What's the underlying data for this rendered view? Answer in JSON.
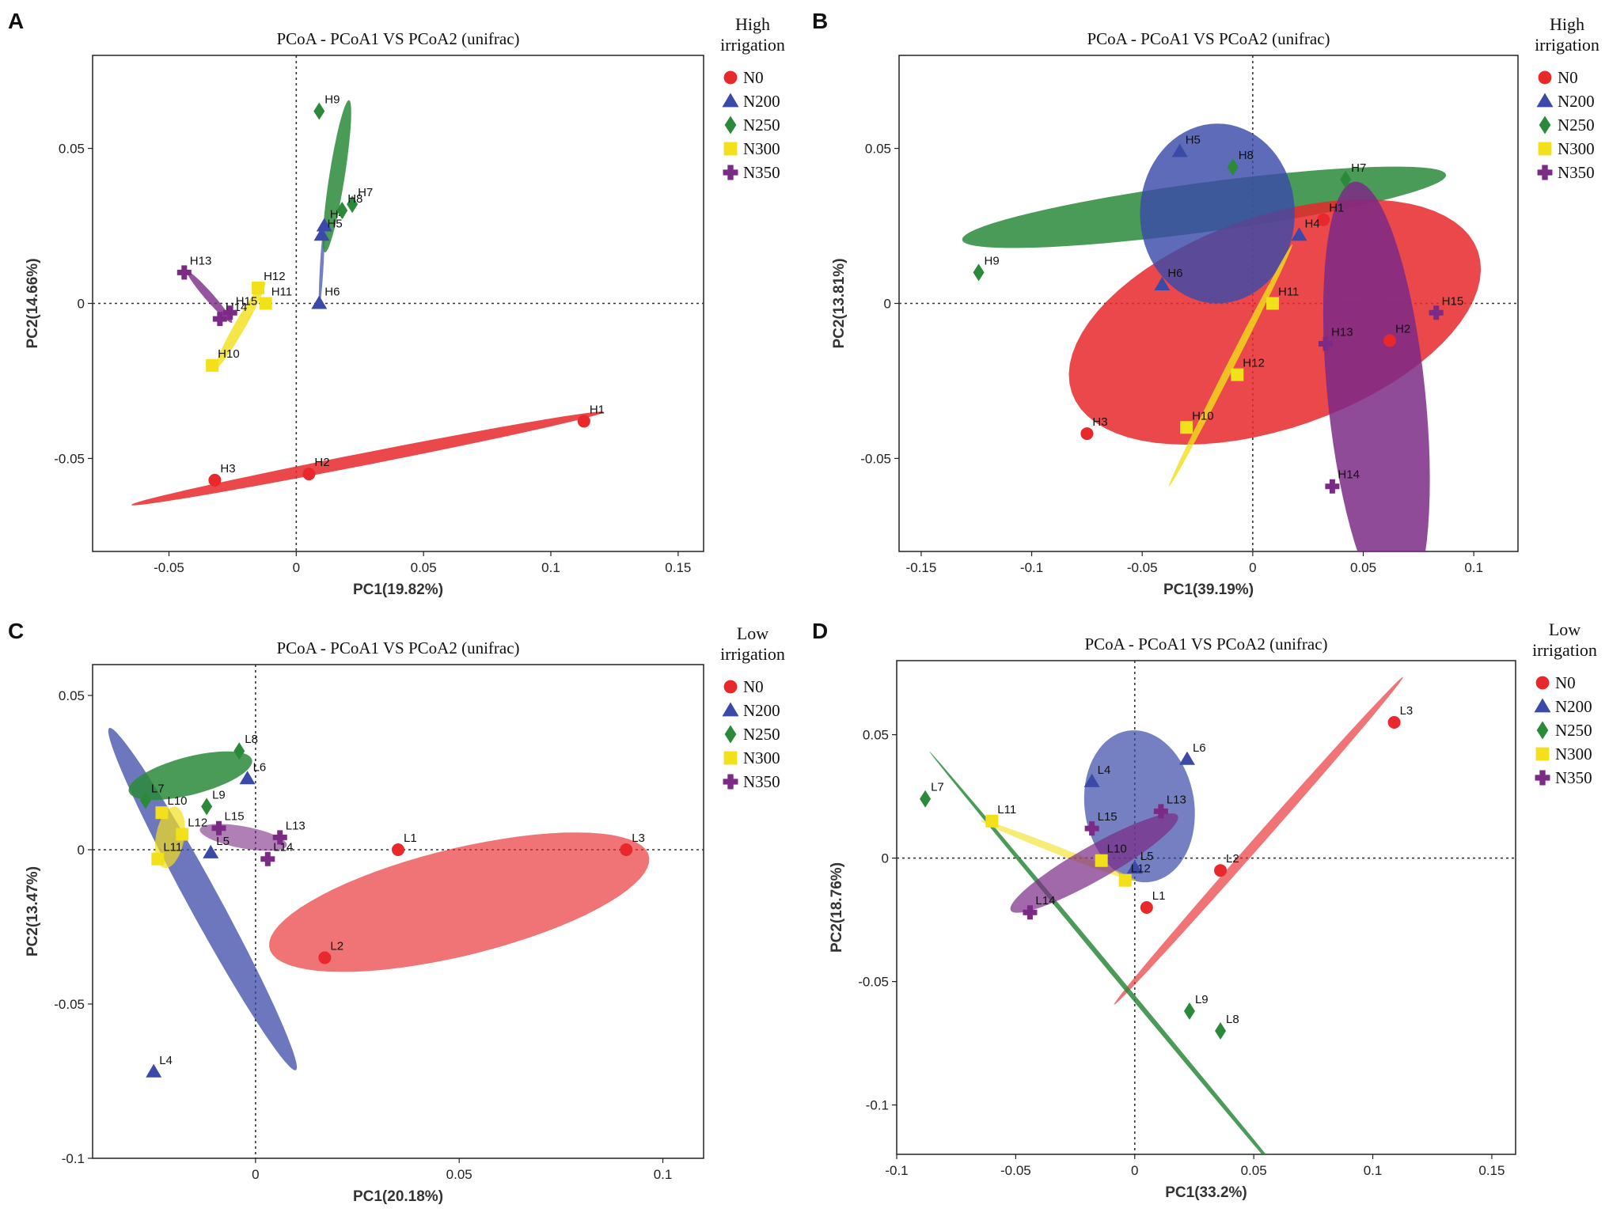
{
  "colors": {
    "N0": "#e8282b",
    "N200": "#3b4aa8",
    "N250": "#2a8a3a",
    "N300": "#f2e01a",
    "N350": "#7b2a86"
  },
  "legend_entries": [
    {
      "key": "N0",
      "label": "N0",
      "marker": "circle"
    },
    {
      "key": "N200",
      "label": "N200",
      "marker": "triangle"
    },
    {
      "key": "N250",
      "label": "N250",
      "marker": "diamond"
    },
    {
      "key": "N300",
      "label": "N300",
      "marker": "square"
    },
    {
      "key": "N350",
      "label": "N350",
      "marker": "cross"
    }
  ],
  "chart_data": [
    {
      "panel": "A",
      "type": "scatter",
      "title": "PCoA - PCoA1 VS PCoA2 (unifrac)",
      "xlabel": "PC1(19.82%)",
      "ylabel": "PC2(14.66%)",
      "xlim": [
        -0.08,
        0.16
      ],
      "ylim": [
        -0.08,
        0.08
      ],
      "xticks": [
        -0.05,
        0,
        0.05,
        0.1,
        0.15
      ],
      "xtick_labels": [
        "-0.05",
        "0",
        "0.05",
        "0.1",
        "0.15"
      ],
      "yticks": [
        -0.05,
        0,
        0.05
      ],
      "ytick_labels": [
        "-0.05",
        "0",
        "0.05"
      ],
      "legend_title": [
        "High",
        "irrigation"
      ],
      "points": [
        {
          "label": "H1",
          "group": "N0",
          "x": 0.113,
          "y": -0.038
        },
        {
          "label": "H2",
          "group": "N0",
          "x": 0.005,
          "y": -0.055
        },
        {
          "label": "H3",
          "group": "N0",
          "x": -0.032,
          "y": -0.057
        },
        {
          "label": "H4",
          "group": "N200",
          "x": 0.011,
          "y": 0.025
        },
        {
          "label": "H5",
          "group": "N200",
          "x": 0.01,
          "y": 0.022
        },
        {
          "label": "H6",
          "group": "N200",
          "x": 0.009,
          "y": 0.0
        },
        {
          "label": "H7",
          "group": "N250",
          "x": 0.022,
          "y": 0.032
        },
        {
          "label": "H8",
          "group": "N250",
          "x": 0.018,
          "y": 0.03
        },
        {
          "label": "H9",
          "group": "N250",
          "x": 0.009,
          "y": 0.062
        },
        {
          "label": "H10",
          "group": "N300",
          "x": -0.033,
          "y": -0.02
        },
        {
          "label": "H11",
          "group": "N300",
          "x": -0.012,
          "y": 0.0
        },
        {
          "label": "H12",
          "group": "N300",
          "x": -0.015,
          "y": 0.005
        },
        {
          "label": "H13",
          "group": "N350",
          "x": -0.044,
          "y": 0.01
        },
        {
          "label": "H14",
          "group": "N350",
          "x": -0.03,
          "y": -0.005
        },
        {
          "label": "H15",
          "group": "N350",
          "x": -0.026,
          "y": -0.003
        }
      ],
      "ellipses": [
        {
          "group": "N0",
          "cx": 0.028,
          "cy": -0.05,
          "rx": 0.094,
          "ry": 0.002,
          "angle": 0.16,
          "opacity": 0.85
        },
        {
          "group": "N200",
          "cx": 0.01,
          "cy": 0.012,
          "rx": 0.013,
          "ry": 0.0007,
          "angle": 1.5,
          "opacity": 0.7
        },
        {
          "group": "N250",
          "cx": 0.016,
          "cy": 0.041,
          "rx": 0.025,
          "ry": 0.003,
          "angle": 1.38,
          "opacity": 0.85
        },
        {
          "group": "N300",
          "cx": -0.022,
          "cy": -0.007,
          "rx": 0.017,
          "ry": 0.002,
          "angle": 0.96,
          "opacity": 0.8
        },
        {
          "group": "N350",
          "cx": -0.034,
          "cy": 0.002,
          "rx": 0.012,
          "ry": 0.0015,
          "angle": -0.75,
          "opacity": 0.8
        }
      ]
    },
    {
      "panel": "B",
      "type": "scatter",
      "title": "PCoA - PCoA1 VS PCoA2 (unifrac)",
      "xlabel": "PC1(39.19%)",
      "ylabel": "PC2(13.81%)",
      "xlim": [
        -0.16,
        0.12
      ],
      "ylim": [
        -0.08,
        0.08
      ],
      "xticks": [
        -0.15,
        -0.1,
        -0.05,
        0,
        0.05,
        0.1
      ],
      "xtick_labels": [
        "-0.15",
        "-0.1",
        "-0.05",
        "0",
        "0.05",
        "0.1"
      ],
      "yticks": [
        -0.05,
        0,
        0.05
      ],
      "ytick_labels": [
        "-0.05",
        "0",
        "0.05"
      ],
      "legend_title": [
        "High",
        "irrigation"
      ],
      "points": [
        {
          "label": "H1",
          "group": "N0",
          "x": 0.032,
          "y": 0.027
        },
        {
          "label": "H2",
          "group": "N0",
          "x": 0.062,
          "y": -0.012
        },
        {
          "label": "H3",
          "group": "N0",
          "x": -0.075,
          "y": -0.042
        },
        {
          "label": "H4",
          "group": "N200",
          "x": 0.021,
          "y": 0.022
        },
        {
          "label": "H5",
          "group": "N200",
          "x": -0.033,
          "y": 0.049
        },
        {
          "label": "H6",
          "group": "N200",
          "x": -0.041,
          "y": 0.006
        },
        {
          "label": "H7",
          "group": "N250",
          "x": 0.042,
          "y": 0.04
        },
        {
          "label": "H8",
          "group": "N250",
          "x": -0.009,
          "y": 0.044
        },
        {
          "label": "H9",
          "group": "N250",
          "x": -0.124,
          "y": 0.01
        },
        {
          "label": "H10",
          "group": "N300",
          "x": -0.03,
          "y": -0.04
        },
        {
          "label": "H11",
          "group": "N300",
          "x": 0.009,
          "y": 0.0
        },
        {
          "label": "H12",
          "group": "N300",
          "x": -0.007,
          "y": -0.023
        },
        {
          "label": "H13",
          "group": "N350",
          "x": 0.033,
          "y": -0.013
        },
        {
          "label": "H14",
          "group": "N350",
          "x": 0.036,
          "y": -0.059
        },
        {
          "label": "H15",
          "group": "N350",
          "x": 0.083,
          "y": -0.003
        }
      ],
      "ellipses": [
        {
          "group": "N250",
          "cx": -0.022,
          "cy": 0.031,
          "rx": 0.11,
          "ry": 0.008,
          "angle": 0.095,
          "opacity": 0.85
        },
        {
          "group": "N0",
          "cx": 0.01,
          "cy": -0.006,
          "rx": 0.095,
          "ry": 0.035,
          "angle": 0.21,
          "opacity": 0.85
        },
        {
          "group": "N200",
          "cx": -0.016,
          "cy": 0.029,
          "rx": 0.035,
          "ry": 0.029,
          "angle": 0,
          "opacity": 0.82
        },
        {
          "group": "N350",
          "cx": 0.056,
          "cy": -0.03,
          "rx": 0.07,
          "ry": 0.022,
          "angle": 1.72,
          "opacity": 0.85
        },
        {
          "group": "N300",
          "cx": -0.01,
          "cy": -0.02,
          "rx": 0.048,
          "ry": 0.0015,
          "angle": 0.95,
          "opacity": 0.8
        }
      ]
    },
    {
      "panel": "C",
      "type": "scatter",
      "title": "PCoA - PCoA1 VS PCoA2 (unifrac)",
      "xlabel": "PC1(20.18%)",
      "ylabel": "PC2(13.47%)",
      "xlim": [
        -0.04,
        0.11
      ],
      "ylim": [
        -0.1,
        0.06
      ],
      "xticks": [
        0,
        0.05,
        0.1
      ],
      "xtick_labels": [
        "0",
        "0.05",
        "0.1"
      ],
      "yticks": [
        -0.1,
        -0.05,
        0,
        0.05
      ],
      "ytick_labels": [
        "-0.1",
        "-0.05",
        "0",
        "0.05"
      ],
      "legend_title": [
        "Low",
        "irrigation"
      ],
      "points": [
        {
          "label": "L1",
          "group": "N0",
          "x": 0.035,
          "y": 0.0
        },
        {
          "label": "L2",
          "group": "N0",
          "x": 0.017,
          "y": -0.035
        },
        {
          "label": "L3",
          "group": "N0",
          "x": 0.091,
          "y": 0.0
        },
        {
          "label": "L4",
          "group": "N200",
          "x": -0.025,
          "y": -0.072
        },
        {
          "label": "L5",
          "group": "N200",
          "x": -0.011,
          "y": -0.001
        },
        {
          "label": "L6",
          "group": "N200",
          "x": -0.002,
          "y": 0.023
        },
        {
          "label": "L7",
          "group": "N250",
          "x": -0.027,
          "y": 0.016
        },
        {
          "label": "L8",
          "group": "N250",
          "x": -0.004,
          "y": 0.032
        },
        {
          "label": "L9",
          "group": "N250",
          "x": -0.012,
          "y": 0.014
        },
        {
          "label": "L10",
          "group": "N300",
          "x": -0.023,
          "y": 0.012
        },
        {
          "label": "L11",
          "group": "N300",
          "x": -0.024,
          "y": -0.003
        },
        {
          "label": "L12",
          "group": "N300",
          "x": -0.018,
          "y": 0.005
        },
        {
          "label": "L13",
          "group": "N350",
          "x": 0.006,
          "y": 0.004
        },
        {
          "label": "L14",
          "group": "N350",
          "x": 0.003,
          "y": -0.003
        },
        {
          "label": "L15",
          "group": "N350",
          "x": -0.009,
          "y": 0.007
        }
      ],
      "ellipses": [
        {
          "group": "N0",
          "cx": 0.05,
          "cy": -0.017,
          "rx": 0.049,
          "ry": 0.017,
          "angle": 0.33,
          "opacity": 0.65
        },
        {
          "group": "N200",
          "cx": -0.013,
          "cy": -0.016,
          "rx": 0.06,
          "ry": 0.004,
          "angle": -1.18,
          "opacity": 0.75
        },
        {
          "group": "N250",
          "cx": -0.016,
          "cy": 0.024,
          "rx": 0.016,
          "ry": 0.006,
          "angle": 0.35,
          "opacity": 0.85
        },
        {
          "group": "N300",
          "cx": -0.021,
          "cy": 0.004,
          "rx": 0.01,
          "ry": 0.0035,
          "angle": 1.45,
          "opacity": 0.7
        },
        {
          "group": "N350",
          "cx": -0.003,
          "cy": 0.004,
          "rx": 0.011,
          "ry": 0.0035,
          "angle": -0.25,
          "opacity": 0.6
        }
      ]
    },
    {
      "panel": "D",
      "type": "scatter",
      "title": "PCoA - PCoA1 VS PCoA2 (unifrac)",
      "xlabel": "PC1(33.2%)",
      "ylabel": "PC2(18.76%)",
      "xlim": [
        -0.1,
        0.16
      ],
      "ylim": [
        -0.12,
        0.08
      ],
      "xticks": [
        -0.1,
        -0.05,
        0,
        0.05,
        0.1,
        0.15
      ],
      "xtick_labels": [
        "-0.1",
        "-0.05",
        "0",
        "0.05",
        "0.1",
        "0.15"
      ],
      "yticks": [
        -0.1,
        -0.05,
        0,
        0.05
      ],
      "ytick_labels": [
        "-0.1",
        "-0.05",
        "0",
        "0.05"
      ],
      "legend_title": [
        "Low",
        "irrigation"
      ],
      "points": [
        {
          "label": "L1",
          "group": "N0",
          "x": 0.005,
          "y": -0.02
        },
        {
          "label": "L2",
          "group": "N0",
          "x": 0.036,
          "y": -0.005
        },
        {
          "label": "L3",
          "group": "N0",
          "x": 0.109,
          "y": 0.055
        },
        {
          "label": "L4",
          "group": "N200",
          "x": -0.018,
          "y": 0.031
        },
        {
          "label": "L5",
          "group": "N200",
          "x": 0.0,
          "y": -0.004
        },
        {
          "label": "L6",
          "group": "N200",
          "x": 0.022,
          "y": 0.04
        },
        {
          "label": "L7",
          "group": "N250",
          "x": -0.088,
          "y": 0.024
        },
        {
          "label": "L8",
          "group": "N250",
          "x": 0.036,
          "y": -0.07
        },
        {
          "label": "L9",
          "group": "N250",
          "x": 0.023,
          "y": -0.062
        },
        {
          "label": "L10",
          "group": "N300",
          "x": -0.014,
          "y": -0.001
        },
        {
          "label": "L11",
          "group": "N300",
          "x": -0.06,
          "y": 0.015
        },
        {
          "label": "L12",
          "group": "N300",
          "x": -0.004,
          "y": -0.009
        },
        {
          "label": "L13",
          "group": "N350",
          "x": 0.011,
          "y": 0.019
        },
        {
          "label": "L14",
          "group": "N350",
          "x": -0.044,
          "y": -0.022
        },
        {
          "label": "L15",
          "group": "N350",
          "x": -0.018,
          "y": 0.012
        }
      ],
      "ellipses": [
        {
          "group": "N200",
          "cx": 0.002,
          "cy": 0.021,
          "rx": 0.023,
          "ry": 0.031,
          "angle": 0.17,
          "opacity": 0.7
        },
        {
          "group": "N0",
          "cx": 0.052,
          "cy": 0.007,
          "rx": 0.09,
          "ry": 0.002,
          "angle": 0.83,
          "opacity": 0.65
        },
        {
          "group": "N250",
          "cx": -0.006,
          "cy": -0.05,
          "rx": 0.123,
          "ry": 0.001,
          "angle": -0.86,
          "opacity": 0.85
        },
        {
          "group": "N300",
          "cx": -0.032,
          "cy": 0.003,
          "rx": 0.035,
          "ry": 0.0015,
          "angle": -0.36,
          "opacity": 0.6
        },
        {
          "group": "N350",
          "cx": -0.017,
          "cy": -0.002,
          "rx": 0.04,
          "ry": 0.007,
          "angle": 0.5,
          "opacity": 0.7
        }
      ]
    }
  ]
}
